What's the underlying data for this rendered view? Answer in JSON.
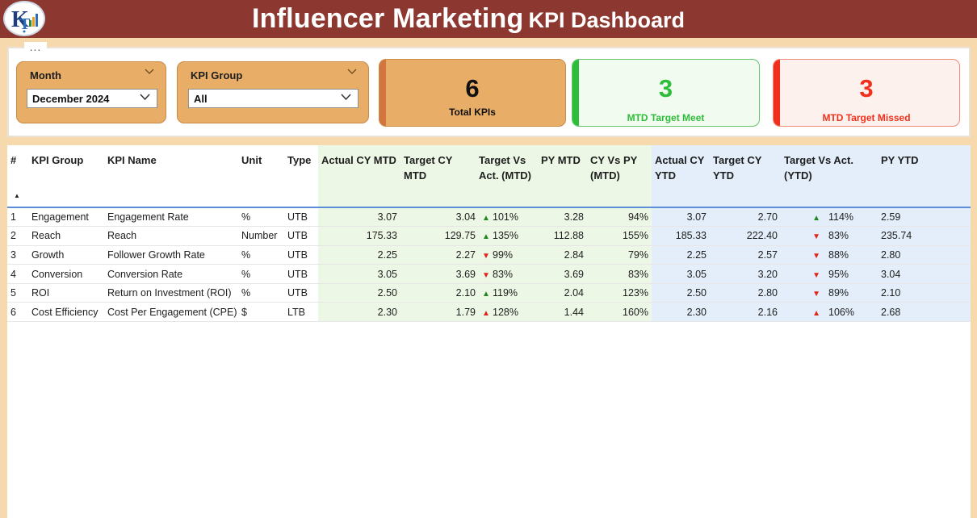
{
  "header": {
    "title_part1": "Influencer Marketing",
    "title_part2": "KPI Dashboard",
    "logo_icon": "logo-icon"
  },
  "menu": {
    "more_label": "..."
  },
  "filters": {
    "month": {
      "label": "Month",
      "selected": "December 2024"
    },
    "kpi_group": {
      "label": "KPI Group",
      "selected": "All"
    }
  },
  "cards": {
    "total": {
      "value": "6",
      "caption": "Total KPIs",
      "color": "#e8ad67"
    },
    "met": {
      "value": "3",
      "caption": "MTD Target Meet",
      "color": "#2ebd3a"
    },
    "missed": {
      "value": "3",
      "caption": "MTD Target Missed",
      "color": "#f0301c"
    }
  },
  "table": {
    "headers": {
      "idx": "#",
      "group": "KPI Group",
      "name": "KPI Name",
      "unit": "Unit",
      "type": "Type",
      "actual_mtd": "Actual CY MTD",
      "target_mtd": "Target CY MTD",
      "tva_mtd": "Target Vs Act. (MTD)",
      "py_mtd": "PY MTD",
      "cyvspy_mtd": "CY Vs PY (MTD)",
      "actual_ytd": "Actual CY YTD",
      "target_ytd": "Target CY YTD",
      "tva_ytd": "Target Vs Act. (YTD)",
      "py_ytd": "PY YTD"
    },
    "rows": [
      {
        "idx": "1",
        "group": "Engagement",
        "name": "Engagement Rate",
        "unit": "%",
        "type": "UTB",
        "actual_mtd": "3.07",
        "target_mtd": "3.04",
        "tva_mtd_icon": "up",
        "tva_mtd": "101%",
        "py_mtd": "3.28",
        "cyvspy_mtd": "94%",
        "actual_ytd": "3.07",
        "target_ytd": "2.70",
        "tva_ytd_icon": "up",
        "tva_ytd": "114%",
        "py_ytd": "2.59"
      },
      {
        "idx": "2",
        "group": "Reach",
        "name": "Reach",
        "unit": "Number",
        "type": "UTB",
        "actual_mtd": "175.33",
        "target_mtd": "129.75",
        "tva_mtd_icon": "up",
        "tva_mtd": "135%",
        "py_mtd": "112.88",
        "cyvspy_mtd": "155%",
        "actual_ytd": "185.33",
        "target_ytd": "222.40",
        "tva_ytd_icon": "down",
        "tva_ytd": "83%",
        "py_ytd": "235.74"
      },
      {
        "idx": "3",
        "group": "Growth",
        "name": "Follower Growth Rate",
        "unit": "%",
        "type": "UTB",
        "actual_mtd": "2.25",
        "target_mtd": "2.27",
        "tva_mtd_icon": "down",
        "tva_mtd": "99%",
        "py_mtd": "2.84",
        "cyvspy_mtd": "79%",
        "actual_ytd": "2.25",
        "target_ytd": "2.57",
        "tva_ytd_icon": "down",
        "tva_ytd": "88%",
        "py_ytd": "2.80"
      },
      {
        "idx": "4",
        "group": "Conversion",
        "name": "Conversion Rate",
        "unit": "%",
        "type": "UTB",
        "actual_mtd": "3.05",
        "target_mtd": "3.69",
        "tva_mtd_icon": "down",
        "tva_mtd": "83%",
        "py_mtd": "3.69",
        "cyvspy_mtd": "83%",
        "actual_ytd": "3.05",
        "target_ytd": "3.20",
        "tva_ytd_icon": "down",
        "tva_ytd": "95%",
        "py_ytd": "3.04"
      },
      {
        "idx": "5",
        "group": "ROI",
        "name": "Return on Investment (ROI)",
        "unit": "%",
        "type": "UTB",
        "actual_mtd": "2.50",
        "target_mtd": "2.10",
        "tva_mtd_icon": "up",
        "tva_mtd": "119%",
        "py_mtd": "2.04",
        "cyvspy_mtd": "123%",
        "actual_ytd": "2.50",
        "target_ytd": "2.80",
        "tva_ytd_icon": "down",
        "tva_ytd": "89%",
        "py_ytd": "2.10"
      },
      {
        "idx": "6",
        "group": "Cost Efficiency",
        "name": "Cost Per Engagement (CPE)",
        "unit": "$",
        "type": "LTB",
        "actual_mtd": "2.30",
        "target_mtd": "1.79",
        "tva_mtd_icon": "up-red",
        "tva_mtd": "128%",
        "py_mtd": "1.44",
        "cyvspy_mtd": "160%",
        "actual_ytd": "2.30",
        "target_ytd": "2.16",
        "tva_ytd_icon": "up-red",
        "tva_ytd": "106%",
        "py_ytd": "2.68"
      }
    ]
  }
}
